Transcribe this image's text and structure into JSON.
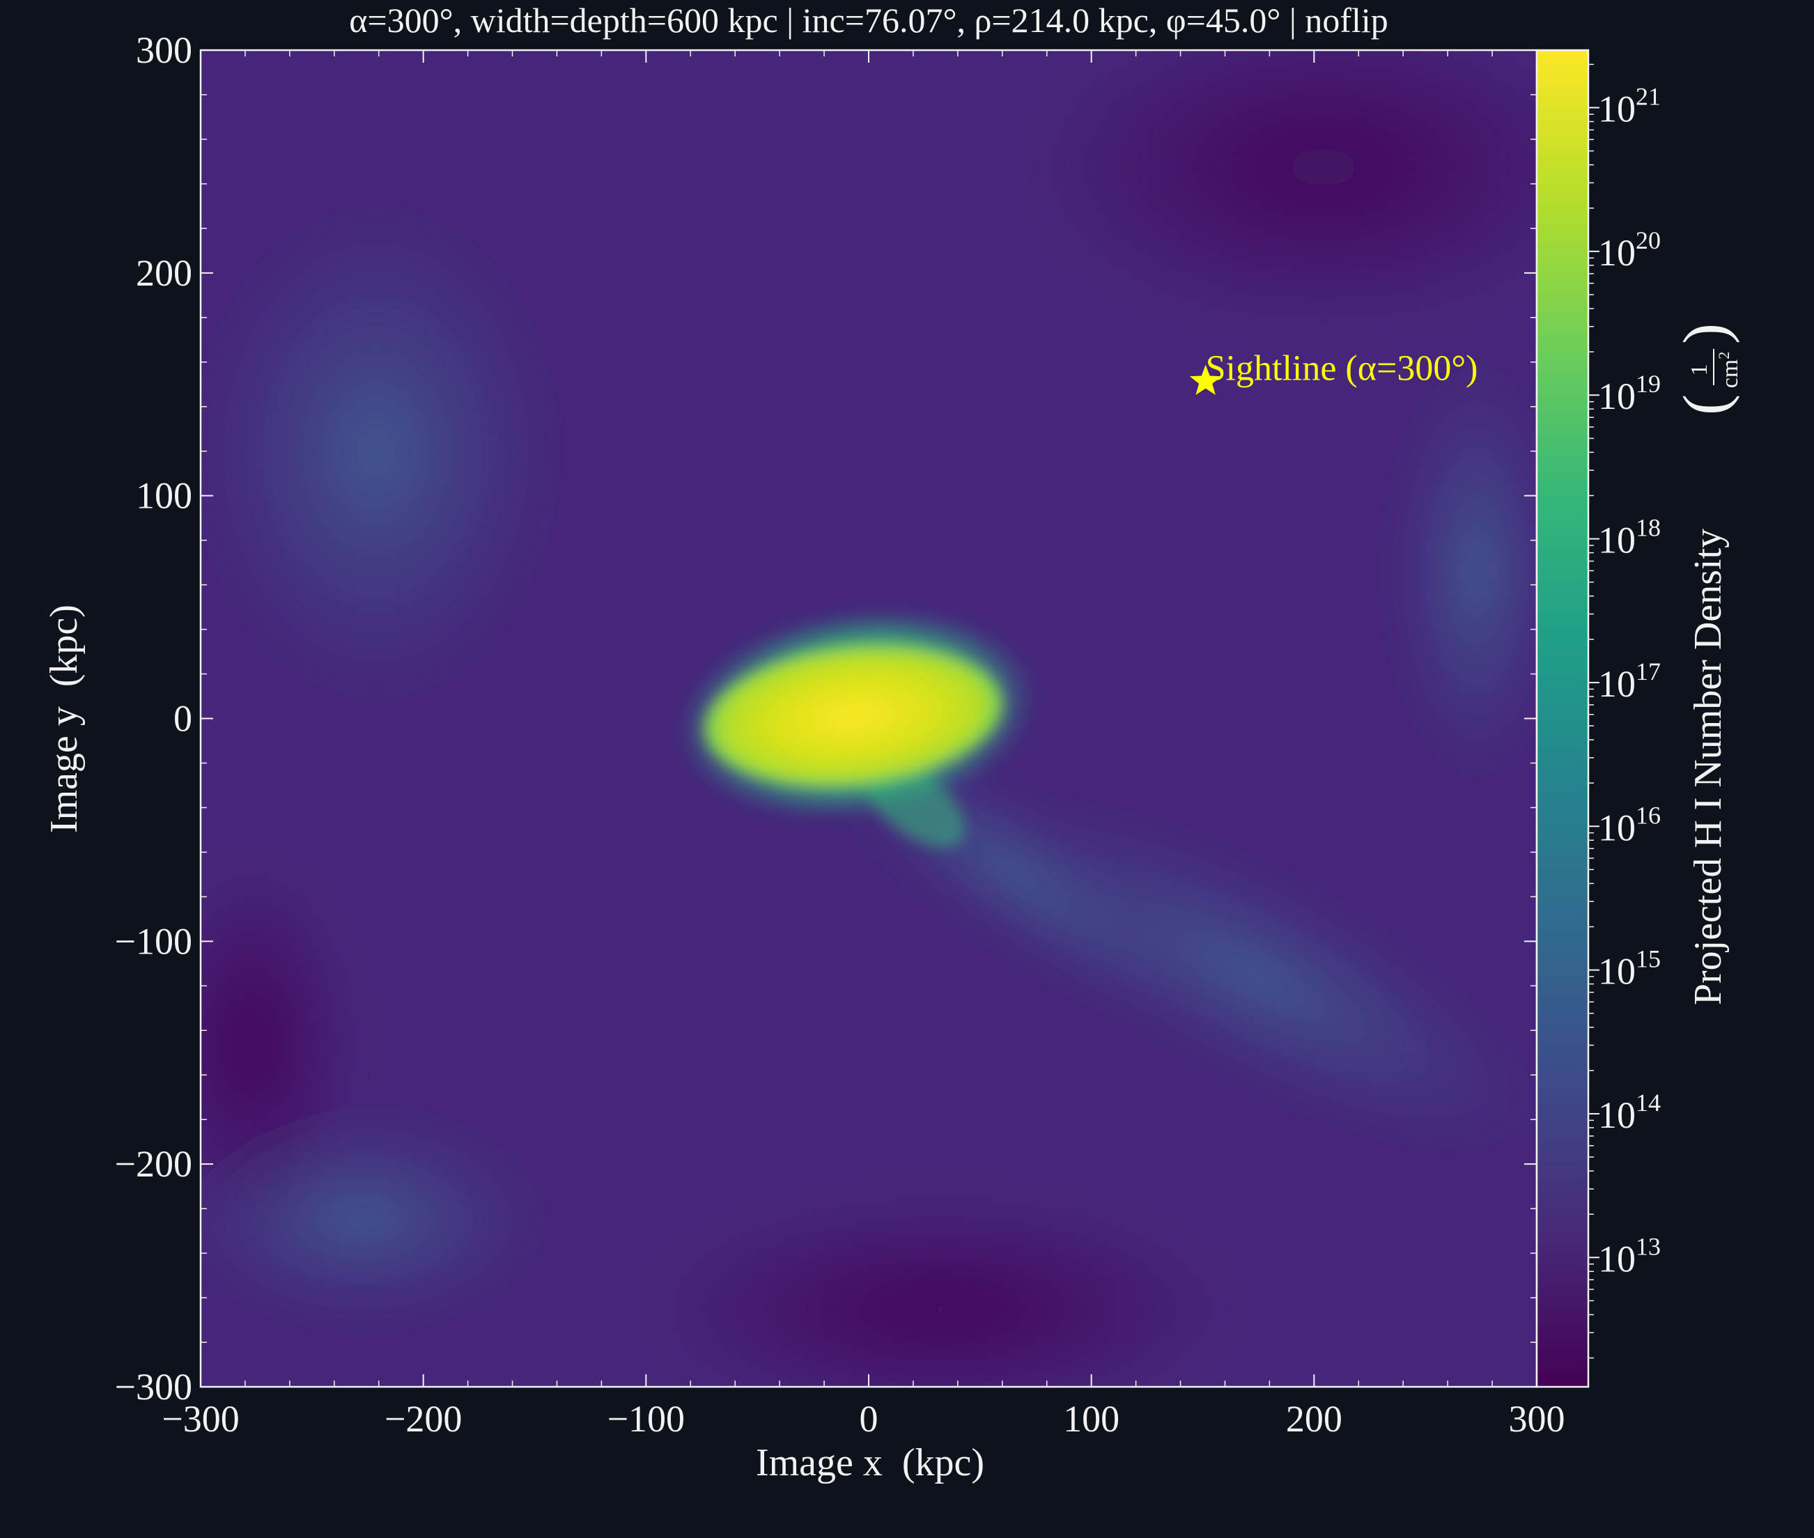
{
  "chart_data": {
    "type": "heatmap",
    "title": "α=300°, width=depth=600 kpc | inc=76.07°, ρ=214.0 kpc, φ=45.0° | noflip",
    "xlabel": "Image x  (kpc)",
    "ylabel": "Image y  (kpc)",
    "xlim": [
      -300,
      300
    ],
    "ylim": [
      -300,
      300
    ],
    "x_ticks": [
      -300,
      -200,
      -100,
      0,
      100,
      200,
      300
    ],
    "y_ticks": [
      -300,
      -200,
      -100,
      0,
      100,
      200,
      300
    ],
    "x_tick_labels": [
      "−300",
      "−200",
      "−100",
      "0",
      "100",
      "200",
      "300"
    ],
    "y_tick_labels": [
      "−300",
      "−200",
      "−100",
      "0",
      "100",
      "200",
      "300"
    ],
    "colorbar": {
      "label": "Projected H I Number Density",
      "unit_numerator": "1",
      "unit_denominator": "cm",
      "unit_exponent": "2",
      "scale": "log",
      "log_range": [
        12.1,
        21.4
      ],
      "ticks_log": [
        13,
        14,
        15,
        16,
        17,
        18,
        19,
        20,
        21
      ],
      "tick_base": "10",
      "colormap": [
        "#440154",
        "#482878",
        "#3e4989",
        "#31688e",
        "#26828e",
        "#1f9e89",
        "#35b779",
        "#6ece58",
        "#b5de2b",
        "#fde725"
      ]
    },
    "marker": {
      "label": "Sightline (α=300°)",
      "x": 151.3,
      "y": 151.3,
      "symbol": "star",
      "color": "#ffff00"
    },
    "grid": false,
    "legend": "none"
  }
}
